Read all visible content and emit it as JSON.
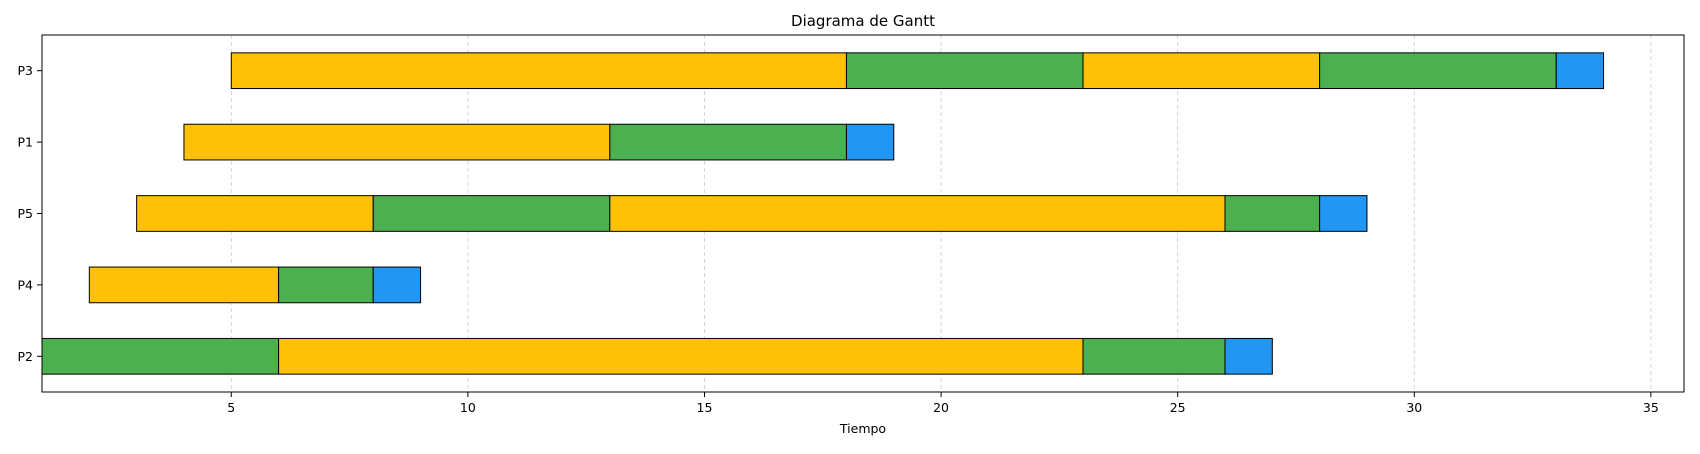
{
  "chart_data": {
    "type": "gantt",
    "title": "Diagrama de Gantt",
    "xlabel": "Tiempo",
    "ylabel": "",
    "xlim": [
      1,
      35.7
    ],
    "xticks": [
      5,
      10,
      15,
      20,
      25,
      30,
      35
    ],
    "grid": "x-dashed",
    "processes": [
      "P2",
      "P4",
      "P5",
      "P1",
      "P3"
    ],
    "colors": {
      "waiting": "#FFC107",
      "running": "#4CAF50",
      "finish": "#2196F3",
      "grid": "#cccccc"
    },
    "segments": [
      {
        "process": "P2",
        "start": 1,
        "end": 6,
        "state": "running"
      },
      {
        "process": "P2",
        "start": 6,
        "end": 23,
        "state": "waiting"
      },
      {
        "process": "P2",
        "start": 23,
        "end": 26,
        "state": "running"
      },
      {
        "process": "P2",
        "start": 26,
        "end": 27,
        "state": "finish"
      },
      {
        "process": "P4",
        "start": 2,
        "end": 6,
        "state": "waiting"
      },
      {
        "process": "P4",
        "start": 6,
        "end": 8,
        "state": "running"
      },
      {
        "process": "P4",
        "start": 8,
        "end": 9,
        "state": "finish"
      },
      {
        "process": "P5",
        "start": 3,
        "end": 8,
        "state": "waiting"
      },
      {
        "process": "P5",
        "start": 8,
        "end": 13,
        "state": "running"
      },
      {
        "process": "P5",
        "start": 13,
        "end": 26,
        "state": "waiting"
      },
      {
        "process": "P5",
        "start": 26,
        "end": 28,
        "state": "running"
      },
      {
        "process": "P5",
        "start": 28,
        "end": 29,
        "state": "finish"
      },
      {
        "process": "P1",
        "start": 4,
        "end": 13,
        "state": "waiting"
      },
      {
        "process": "P1",
        "start": 13,
        "end": 18,
        "state": "running"
      },
      {
        "process": "P1",
        "start": 18,
        "end": 19,
        "state": "finish"
      },
      {
        "process": "P3",
        "start": 5,
        "end": 18,
        "state": "waiting"
      },
      {
        "process": "P3",
        "start": 18,
        "end": 23,
        "state": "running"
      },
      {
        "process": "P3",
        "start": 23,
        "end": 28,
        "state": "waiting"
      },
      {
        "process": "P3",
        "start": 28,
        "end": 33,
        "state": "running"
      },
      {
        "process": "P3",
        "start": 33,
        "end": 34,
        "state": "finish"
      }
    ]
  }
}
